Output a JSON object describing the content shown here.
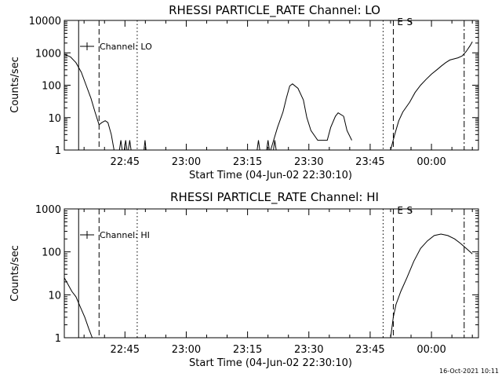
{
  "footer": {
    "timestamp": "16-Oct-2021 10:11"
  },
  "chart_data": [
    {
      "type": "line",
      "title": "RHESSI PARTICLE_RATE Channel: LO",
      "xlabel": "Start Time (04-Jun-02 22:30:10)",
      "ylabel": "Counts/sec",
      "y_scale": "log",
      "ylim": [
        1,
        10000
      ],
      "xlim": [
        "22:30:10",
        "00:11:30"
      ],
      "x_ticks": [
        "22:45",
        "23:00",
        "23:15",
        "23:30",
        "23:45",
        "00:00"
      ],
      "y_ticks": [
        "1",
        "10",
        "100",
        "1000",
        "10000"
      ],
      "legend": {
        "label": "Channel: LO",
        "placement": "top-left"
      },
      "markers": [
        {
          "label": "E",
          "x": "23:52:20"
        },
        {
          "label": "S",
          "x": "23:54:40"
        }
      ],
      "vlines": [
        {
          "x": "22:33:40",
          "style": "solid"
        },
        {
          "x": "22:38:40",
          "style": "dashed"
        },
        {
          "x": "22:48:00",
          "style": "dotted"
        },
        {
          "x": "23:48:10",
          "style": "dotted"
        },
        {
          "x": "23:50:40",
          "style": "dashed"
        },
        {
          "x": "00:08:00",
          "style": "dashdot"
        }
      ],
      "series": [
        {
          "segments": [
            {
              "x": [
                "22:30:10",
                "22:31:40",
                "22:33:00",
                "22:34:20",
                "22:35:30",
                "22:36:40",
                "22:37:40",
                "22:38:40",
                "22:39:20",
                "22:40:10",
                "22:40:50",
                "22:41:40",
                "22:42:20"
              ],
              "y": [
                900,
                750,
                500,
                250,
                100,
                40,
                15,
                6,
                7,
                8,
                7,
                3,
                1
              ]
            },
            {
              "x": [
                "22:43:40",
                "22:44:00",
                "22:44:20"
              ],
              "y": [
                1,
                2,
                1
              ]
            },
            {
              "x": [
                "22:44:50",
                "22:45:10",
                "22:45:30"
              ],
              "y": [
                1,
                2,
                1
              ]
            },
            {
              "x": [
                "22:45:50",
                "22:46:10",
                "22:46:30"
              ],
              "y": [
                1,
                2,
                1
              ]
            },
            {
              "x": [
                "22:49:40",
                "22:49:55",
                "22:50:10"
              ],
              "y": [
                1,
                2,
                1
              ]
            },
            {
              "x": [
                "23:17:20",
                "23:17:40",
                "23:18:00"
              ],
              "y": [
                1,
                2,
                1
              ]
            },
            {
              "x": [
                "23:19:40",
                "23:20:00",
                "23:20:20"
              ],
              "y": [
                1,
                2,
                1
              ]
            },
            {
              "x": [
                "23:21:20",
                "23:21:40",
                "23:22:00"
              ],
              "y": [
                1,
                2,
                1
              ]
            },
            {
              "x": [
                "23:20:40",
                "23:22:20",
                "23:23:40",
                "23:24:30",
                "23:25:20",
                "23:26:00",
                "23:27:20",
                "23:28:40",
                "23:29:30",
                "23:30:30",
                "23:32:10",
                "23:33:20",
                "23:34:30",
                "23:35:20",
                "23:36:30",
                "23:37:10",
                "23:38:30"
              ],
              "y": [
                1,
                5,
                15,
                40,
                95,
                110,
                80,
                35,
                10,
                4,
                2,
                2,
                2,
                5,
                11,
                14,
                11
              ]
            },
            {
              "x": [
                "23:38:30",
                "23:39:20",
                "23:40:30"
              ],
              "y": [
                11,
                4,
                2
              ]
            },
            {
              "x": [
                "23:50:00",
                "23:51:00",
                "23:52:00",
                "23:53:00",
                "23:54:40",
                "23:56:00",
                "23:57:20",
                "23:58:40",
                "00:00:00",
                "00:01:20",
                "00:02:30",
                "00:03:30",
                "00:04:30",
                "00:05:30",
                "00:06:30",
                "00:07:30",
                "00:08:30",
                "00:09:30",
                "00:10:00"
              ],
              "y": [
                1,
                3,
                8,
                15,
                30,
                60,
                100,
                150,
                220,
                300,
                400,
                500,
                600,
                650,
                700,
                800,
                1100,
                1700,
                2200
              ]
            }
          ]
        }
      ]
    },
    {
      "type": "line",
      "title": "RHESSI PARTICLE_RATE Channel: HI",
      "xlabel": "Start Time (04-Jun-02 22:30:10)",
      "ylabel": "Counts/sec",
      "y_scale": "log",
      "ylim": [
        1,
        1000
      ],
      "xlim": [
        "22:30:10",
        "00:11:30"
      ],
      "x_ticks": [
        "22:45",
        "23:00",
        "23:15",
        "23:30",
        "23:45",
        "00:00"
      ],
      "y_ticks": [
        "1",
        "10",
        "100",
        "1000"
      ],
      "legend": {
        "label": "Channel: HI",
        "placement": "top-left"
      },
      "markers": [
        {
          "label": "E",
          "x": "23:52:20"
        },
        {
          "label": "S",
          "x": "23:54:40"
        }
      ],
      "vlines": [
        {
          "x": "22:33:40",
          "style": "solid"
        },
        {
          "x": "22:38:40",
          "style": "dashed"
        },
        {
          "x": "22:48:00",
          "style": "dotted"
        },
        {
          "x": "23:48:10",
          "style": "dotted"
        },
        {
          "x": "23:50:40",
          "style": "dashed"
        },
        {
          "x": "00:08:00",
          "style": "dashdot"
        }
      ],
      "series": [
        {
          "segments": [
            {
              "x": [
                "22:30:10",
                "22:31:00",
                "22:32:00",
                "22:33:00",
                "22:34:10",
                "22:35:10",
                "22:36:10",
                "22:37:00"
              ],
              "y": [
                25,
                18,
                12,
                9,
                5,
                3,
                1.6,
                1
              ]
            },
            {
              "x": [
                "23:50:00",
                "23:50:40",
                "23:51:20",
                "23:52:30",
                "23:54:00",
                "23:55:40",
                "23:57:20",
                "23:59:00",
                "00:00:40",
                "00:02:20",
                "00:04:00",
                "00:05:40",
                "00:07:00",
                "00:08:30",
                "00:10:00"
              ],
              "y": [
                1,
                3,
                6,
                12,
                25,
                60,
                120,
                180,
                240,
                260,
                240,
                200,
                160,
                120,
                90
              ]
            }
          ]
        }
      ]
    }
  ]
}
